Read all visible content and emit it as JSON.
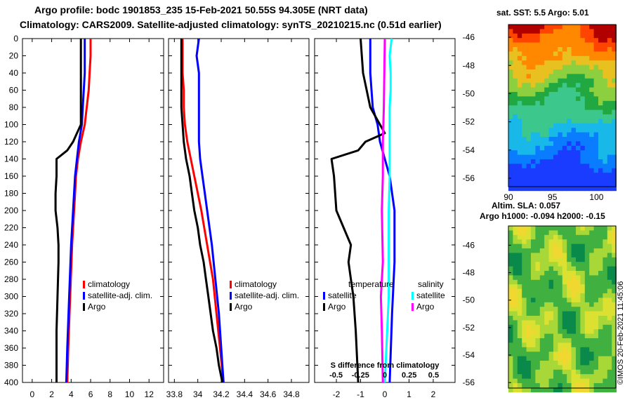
{
  "title_line1": "Argo profile: bodc 1901853_235 15-Feb-2021 50.55S 94.305E (NRT data)",
  "title_line2": "Climatology: CARS2009. Satellite-adjusted climatology: synTS_20210215.nc (0.51d earlier)",
  "colors": {
    "climatology": "#ff0000",
    "satellite": "#0000ff",
    "argo": "#000000",
    "salinity_sat": "#00ffff",
    "salinity_argo": "#ff00ff"
  },
  "chart_data": [
    {
      "type": "line",
      "panel": "temperature",
      "ylim": [
        400,
        0
      ],
      "yticks": [
        "0",
        "20",
        "40",
        "60",
        "80",
        "100",
        "120",
        "140",
        "160",
        "180",
        "200",
        "220",
        "240",
        "260",
        "280",
        "300",
        "320",
        "340",
        "360",
        "380",
        "400"
      ],
      "xlim": [
        -1,
        13.5
      ],
      "xticks": [
        "0",
        "2",
        "4",
        "6",
        "8",
        "10",
        "12"
      ],
      "legend": [
        "climatology",
        "satellite-adj. clim.",
        "Argo"
      ],
      "series": [
        {
          "name": "climatology",
          "depth": [
            0,
            20,
            40,
            60,
            80,
            100,
            120,
            140,
            160,
            180,
            200,
            240,
            300,
            360,
            400
          ],
          "values": [
            6.0,
            6.0,
            5.9,
            5.8,
            5.6,
            5.4,
            5.0,
            4.7,
            4.5,
            4.4,
            4.3,
            4.1,
            3.9,
            3.7,
            3.6
          ]
        },
        {
          "name": "satellite-adj. clim.",
          "depth": [
            0,
            20,
            40,
            60,
            80,
            100,
            120,
            140,
            160,
            180,
            200,
            240,
            300,
            360,
            400
          ],
          "values": [
            5.4,
            5.4,
            5.4,
            5.3,
            5.2,
            5.1,
            4.8,
            4.6,
            4.4,
            4.3,
            4.2,
            4.0,
            3.8,
            3.6,
            3.5
          ]
        },
        {
          "name": "Argo",
          "depth": [
            0,
            20,
            40,
            60,
            80,
            100,
            110,
            120,
            130,
            140,
            160,
            180,
            200,
            220,
            240,
            260,
            300,
            340,
            380,
            400
          ],
          "values": [
            5.0,
            5.0,
            5.0,
            5.0,
            5.0,
            5.0,
            4.6,
            4.2,
            3.6,
            2.5,
            2.5,
            2.4,
            2.4,
            2.6,
            2.7,
            2.7,
            2.6,
            2.5,
            2.5,
            2.5
          ]
        }
      ]
    },
    {
      "type": "line",
      "panel": "salinity",
      "ylim": [
        400,
        0
      ],
      "xlim": [
        33.75,
        34.95
      ],
      "xticks": [
        "33.8",
        "34",
        "34.2",
        "34.4",
        "34.6",
        "34.8"
      ],
      "legend": [
        "climatology",
        "satellite-adj. clim.",
        "Argo"
      ],
      "series": [
        {
          "name": "climatology",
          "depth": [
            0,
            20,
            40,
            60,
            80,
            100,
            120,
            140,
            160,
            180,
            200,
            240,
            280,
            320,
            360,
            400
          ],
          "values": [
            33.87,
            33.87,
            33.87,
            33.88,
            33.88,
            33.89,
            33.91,
            33.94,
            33.97,
            34.0,
            34.03,
            34.08,
            34.13,
            34.16,
            34.19,
            34.22
          ]
        },
        {
          "name": "satellite-adj. clim.",
          "depth": [
            0,
            20,
            40,
            60,
            80,
            100,
            120,
            140,
            160,
            180,
            200,
            240,
            280,
            320,
            360,
            400
          ],
          "values": [
            34.01,
            33.99,
            34.01,
            34.01,
            34.01,
            34.01,
            34.01,
            34.02,
            34.04,
            34.06,
            34.08,
            34.12,
            34.15,
            34.18,
            34.2,
            34.22
          ]
        },
        {
          "name": "Argo",
          "depth": [
            0,
            20,
            40,
            60,
            80,
            100,
            120,
            140,
            160,
            180,
            200,
            220,
            240,
            260,
            280,
            300,
            320,
            340,
            360,
            380,
            400
          ],
          "values": [
            33.86,
            33.86,
            33.86,
            33.86,
            33.86,
            33.87,
            33.88,
            33.9,
            33.93,
            33.95,
            33.97,
            34.0,
            34.02,
            34.05,
            34.07,
            34.09,
            34.11,
            34.13,
            34.16,
            34.18,
            34.21
          ]
        }
      ]
    },
    {
      "type": "line",
      "panel": "difference",
      "ylim": [
        400,
        0
      ],
      "xlim": [
        -2.9,
        2.9
      ],
      "xticks": [
        "-2",
        "-1",
        "0",
        "1",
        "2"
      ],
      "x2ticks": [
        "-0.5",
        "-0.25",
        "0",
        "0.25",
        "0.5"
      ],
      "xlabel": "S difference from climatology",
      "legend_groups": [
        {
          "title": "temperature",
          "items": [
            "satellite",
            "Argo"
          ]
        },
        {
          "title": "salinity",
          "items": [
            "satellite",
            "Argo"
          ]
        }
      ],
      "series": [
        {
          "name": "temperature satellite",
          "depth": [
            0,
            40,
            80,
            100,
            120,
            160,
            200,
            260,
            320,
            400
          ],
          "values": [
            -0.6,
            -0.6,
            -0.5,
            -0.3,
            -0.2,
            0.2,
            0.4,
            0.4,
            0.3,
            0.2
          ]
        },
        {
          "name": "temperature Argo",
          "depth": [
            0,
            40,
            80,
            100,
            110,
            120,
            130,
            140,
            160,
            200,
            240,
            260,
            280,
            300,
            340,
            400
          ],
          "values": [
            -1.0,
            -0.9,
            -0.6,
            -0.2,
            0.0,
            -0.8,
            -1.1,
            -2.2,
            -2.1,
            -2.0,
            -1.4,
            -1.5,
            -1.4,
            -1.3,
            -1.2,
            -1.1
          ]
        },
        {
          "name": "salinity satellite",
          "depth": [
            0,
            20,
            40,
            60,
            80,
            100,
            160,
            200,
            300,
            400
          ],
          "values": [
            0.07,
            0.05,
            0.06,
            0.06,
            0.05,
            0.05,
            0.05,
            0.04,
            0.04,
            0.0
          ]
        },
        {
          "name": "salinity Argo",
          "depth": [
            0,
            80,
            120,
            160,
            200,
            260,
            300,
            340,
            400
          ],
          "values": [
            0.0,
            -0.01,
            -0.02,
            -0.02,
            -0.03,
            -0.02,
            -0.04,
            -0.03,
            -0.02
          ]
        }
      ]
    }
  ],
  "sst_map": {
    "title": "sat. SST: 5.5 Argo: 5.01",
    "yticks": [
      "-46",
      "-48",
      "-50",
      "-52",
      "-54",
      "-56"
    ],
    "xticks": [
      "90",
      "95",
      "100"
    ]
  },
  "sla_map": {
    "title1": "Altim. SLA: 0.057",
    "title2": "Argo h1000: -0.094 h2000: -0.15",
    "yticks": [
      "-46",
      "-48",
      "-50",
      "-52",
      "-54",
      "-56"
    ]
  },
  "credit": "©IMOS 20-Feb-2021 11:45:06"
}
